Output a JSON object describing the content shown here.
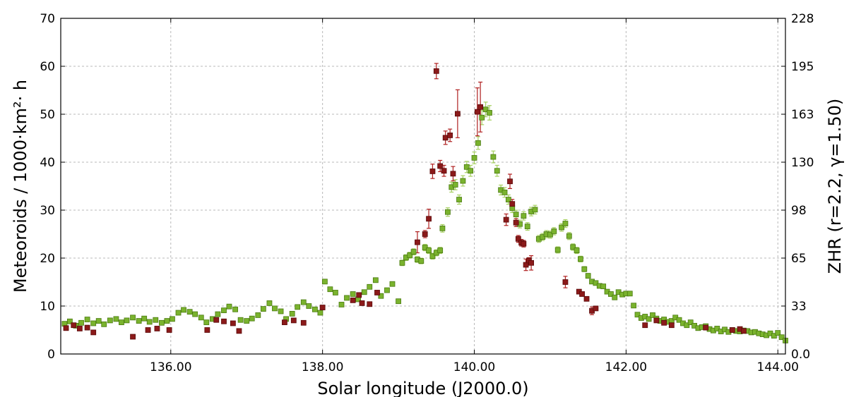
{
  "chart_data": {
    "type": "scatter",
    "xlabel": "Solar longitude (J2000.0)",
    "ylabel": "Meteoroids / 1000·km²· h",
    "ylabel_right": "ZHR (r=2.2, γ=1.50)",
    "xlim": [
      134.55,
      144.1
    ],
    "ylim": [
      0,
      70
    ],
    "grid": true,
    "x_ticks": [
      "136.00",
      "138.00",
      "140.00",
      "142.00",
      "144.00"
    ],
    "x_tick_values": [
      136,
      138,
      140,
      142,
      144
    ],
    "y_ticks": [
      "0",
      "10",
      "20",
      "30",
      "40",
      "50",
      "60",
      "70"
    ],
    "y_tick_values": [
      0,
      10,
      20,
      30,
      40,
      50,
      60,
      70
    ],
    "y2_ticks": [
      "0.0",
      "33",
      "65",
      "98",
      "130",
      "163",
      "195",
      "228"
    ],
    "y2_tick_values": [
      0,
      32.5,
      65,
      97.5,
      130,
      162.5,
      195,
      227.5
    ],
    "y2_max": 227.5,
    "series": [
      {
        "color": "#7ab32e",
        "edge": "#4a7a10",
        "err_color": "#a6d060",
        "points": [
          [
            134.6,
            6.3
          ],
          [
            134.67,
            6.8
          ],
          [
            134.75,
            5.9
          ],
          [
            134.82,
            6.5
          ],
          [
            134.9,
            7.2
          ],
          [
            134.98,
            6.4
          ],
          [
            135.05,
            6.9
          ],
          [
            135.12,
            6.2
          ],
          [
            135.2,
            7.0
          ],
          [
            135.28,
            7.3
          ],
          [
            135.35,
            6.6
          ],
          [
            135.42,
            7.0
          ],
          [
            135.5,
            7.6
          ],
          [
            135.58,
            6.9
          ],
          [
            135.65,
            7.4
          ],
          [
            135.72,
            6.7
          ],
          [
            135.8,
            7.1
          ],
          [
            135.88,
            6.5
          ],
          [
            135.95,
            6.9
          ],
          [
            136.02,
            7.3
          ],
          [
            136.1,
            8.6
          ],
          [
            136.17,
            9.2
          ],
          [
            136.25,
            8.8
          ],
          [
            136.32,
            8.3
          ],
          [
            136.4,
            7.6
          ],
          [
            136.47,
            6.6
          ],
          [
            136.55,
            7.3
          ],
          [
            136.62,
            8.3
          ],
          [
            136.7,
            9.1
          ],
          [
            136.77,
            9.9
          ],
          [
            136.85,
            9.3
          ],
          [
            136.92,
            7.1
          ],
          [
            137.0,
            6.9
          ],
          [
            137.07,
            7.4
          ],
          [
            137.15,
            8.1
          ],
          [
            137.22,
            9.4
          ],
          [
            137.3,
            10.6
          ],
          [
            137.37,
            9.5
          ],
          [
            137.45,
            8.9
          ],
          [
            137.52,
            7.3
          ],
          [
            137.6,
            8.4
          ],
          [
            137.67,
            9.8
          ],
          [
            137.75,
            10.8
          ],
          [
            137.82,
            10.0
          ],
          [
            137.9,
            9.3
          ],
          [
            137.97,
            8.6
          ],
          [
            138.03,
            15.1
          ],
          [
            138.1,
            13.5
          ],
          [
            138.17,
            12.8
          ],
          [
            138.25,
            10.3
          ],
          [
            138.32,
            11.7
          ],
          [
            138.4,
            12.5
          ],
          [
            138.47,
            11.4
          ],
          [
            138.55,
            12.9
          ],
          [
            138.62,
            14.0
          ],
          [
            138.7,
            15.4
          ],
          [
            138.77,
            12.1
          ],
          [
            138.85,
            13.3
          ],
          [
            138.92,
            14.6
          ],
          [
            139.0,
            11.0
          ],
          [
            139.05,
            19.0
          ],
          [
            139.1,
            20.1
          ],
          [
            139.15,
            20.6
          ],
          [
            139.2,
            21.3
          ],
          [
            139.25,
            19.7
          ],
          [
            139.3,
            19.4
          ],
          [
            139.35,
            22.2
          ],
          [
            139.4,
            21.6
          ],
          [
            139.45,
            20.4
          ],
          [
            139.5,
            21.1
          ],
          [
            139.55,
            21.6
          ],
          [
            139.58,
            26.2
          ],
          [
            139.65,
            29.6
          ],
          [
            139.7,
            34.8
          ],
          [
            139.75,
            35.3
          ],
          [
            139.8,
            32.2
          ],
          [
            139.85,
            36.1
          ],
          [
            139.9,
            39.0
          ],
          [
            139.95,
            38.2
          ],
          [
            140.0,
            40.9
          ],
          [
            140.05,
            44.0
          ],
          [
            140.1,
            49.3
          ],
          [
            140.15,
            51.0
          ],
          [
            140.2,
            50.3
          ],
          [
            140.25,
            41.1
          ],
          [
            140.3,
            38.2
          ],
          [
            140.35,
            34.2
          ],
          [
            140.4,
            33.7
          ],
          [
            140.45,
            32.2
          ],
          [
            140.5,
            30.4
          ],
          [
            140.55,
            29.1
          ],
          [
            140.6,
            27.1
          ],
          [
            140.65,
            28.8
          ],
          [
            140.7,
            26.6
          ],
          [
            140.75,
            29.7
          ],
          [
            140.8,
            30.1
          ],
          [
            140.85,
            24.0
          ],
          [
            140.9,
            24.4
          ],
          [
            140.95,
            25.0
          ],
          [
            141.0,
            24.9
          ],
          [
            141.05,
            25.6
          ],
          [
            141.1,
            21.7
          ],
          [
            141.15,
            26.4
          ],
          [
            141.2,
            27.2
          ],
          [
            141.25,
            24.6
          ],
          [
            141.3,
            22.3
          ],
          [
            141.35,
            21.6
          ],
          [
            141.4,
            19.8
          ],
          [
            141.45,
            17.7
          ],
          [
            141.5,
            16.3
          ],
          [
            141.55,
            15.1
          ],
          [
            141.6,
            14.8
          ],
          [
            141.65,
            14.2
          ],
          [
            141.7,
            14.1
          ],
          [
            141.75,
            13.0
          ],
          [
            141.8,
            12.5
          ],
          [
            141.85,
            11.8
          ],
          [
            141.9,
            12.9
          ],
          [
            141.95,
            12.4
          ],
          [
            142.0,
            12.6
          ],
          [
            142.05,
            12.6
          ],
          [
            142.1,
            10.1
          ],
          [
            142.15,
            8.2
          ],
          [
            142.2,
            7.5
          ],
          [
            142.25,
            7.8
          ],
          [
            142.3,
            7.3
          ],
          [
            142.35,
            8.1
          ],
          [
            142.4,
            7.4
          ],
          [
            142.45,
            6.9
          ],
          [
            142.5,
            7.2
          ],
          [
            142.55,
            6.7
          ],
          [
            142.6,
            6.9
          ],
          [
            142.65,
            7.6
          ],
          [
            142.7,
            7.1
          ],
          [
            142.75,
            6.4
          ],
          [
            142.8,
            6.0
          ],
          [
            142.85,
            6.6
          ],
          [
            142.9,
            5.9
          ],
          [
            142.95,
            5.4
          ],
          [
            143.0,
            5.6
          ],
          [
            143.05,
            5.8
          ],
          [
            143.1,
            5.2
          ],
          [
            143.15,
            4.9
          ],
          [
            143.2,
            5.3
          ],
          [
            143.25,
            4.7
          ],
          [
            143.3,
            5.1
          ],
          [
            143.35,
            4.6
          ],
          [
            143.4,
            5.0
          ],
          [
            143.45,
            4.8
          ],
          [
            143.5,
            4.7
          ],
          [
            143.55,
            4.9
          ],
          [
            143.6,
            4.8
          ],
          [
            143.65,
            4.5
          ],
          [
            143.7,
            4.6
          ],
          [
            143.75,
            4.3
          ],
          [
            143.8,
            4.1
          ],
          [
            143.85,
            3.9
          ],
          [
            143.9,
            4.3
          ],
          [
            143.95,
            3.8
          ],
          [
            144.0,
            4.4
          ],
          [
            144.05,
            3.5
          ],
          [
            144.1,
            2.8
          ]
        ]
      },
      {
        "color": "#8b1a1a",
        "edge": "#5a0a0a",
        "err_color": "#b02020",
        "points": [
          [
            134.62,
            5.4
          ],
          [
            134.72,
            6.0
          ],
          [
            134.8,
            5.3
          ],
          [
            134.9,
            5.5
          ],
          [
            134.98,
            4.5
          ],
          [
            135.5,
            3.6
          ],
          [
            135.7,
            5.0
          ],
          [
            135.82,
            5.3
          ],
          [
            135.98,
            5.0
          ],
          [
            136.48,
            5.0
          ],
          [
            136.6,
            7.1
          ],
          [
            136.7,
            6.8
          ],
          [
            136.82,
            6.4
          ],
          [
            136.9,
            4.8
          ],
          [
            137.5,
            6.6
          ],
          [
            137.62,
            7.0
          ],
          [
            137.75,
            6.5
          ],
          [
            138.0,
            9.7
          ],
          [
            138.4,
            11.2
          ],
          [
            138.48,
            12.3
          ],
          [
            138.52,
            10.6
          ],
          [
            138.62,
            10.4
          ],
          [
            138.72,
            12.8
          ],
          [
            139.25,
            23.3
          ],
          [
            139.35,
            25.0
          ],
          [
            139.4,
            28.2
          ],
          [
            139.45,
            38.1
          ],
          [
            139.5,
            59.0
          ],
          [
            139.55,
            39.2
          ],
          [
            139.6,
            38.2
          ],
          [
            139.62,
            45.1
          ],
          [
            139.68,
            45.6
          ],
          [
            139.72,
            37.6
          ],
          [
            139.78,
            50.1
          ],
          [
            140.04,
            50.5
          ],
          [
            140.08,
            51.5
          ],
          [
            140.42,
            28.0
          ],
          [
            140.47,
            36.0
          ],
          [
            140.5,
            31.3
          ],
          [
            140.55,
            27.4
          ],
          [
            140.58,
            24.0
          ],
          [
            140.62,
            23.2
          ],
          [
            140.65,
            23.0
          ],
          [
            140.68,
            18.6
          ],
          [
            140.72,
            19.5
          ],
          [
            140.75,
            19.0
          ],
          [
            141.2,
            15.0
          ],
          [
            141.38,
            13.0
          ],
          [
            141.42,
            12.5
          ],
          [
            141.48,
            11.5
          ],
          [
            141.55,
            9.0
          ],
          [
            141.6,
            9.5
          ],
          [
            142.25,
            6.0
          ],
          [
            142.4,
            7.0
          ],
          [
            142.5,
            6.5
          ],
          [
            142.6,
            6.0
          ],
          [
            143.05,
            5.5
          ],
          [
            143.4,
            5.0
          ],
          [
            143.5,
            5.2
          ],
          [
            143.55,
            4.8
          ]
        ],
        "error_bars": [
          [
            139.25,
            2.2
          ],
          [
            139.4,
            2.0
          ],
          [
            139.45,
            1.5
          ],
          [
            139.5,
            1.6
          ],
          [
            139.62,
            1.4
          ],
          [
            139.68,
            1.3
          ],
          [
            139.72,
            1.5
          ],
          [
            139.78,
            5.0
          ],
          [
            140.04,
            5.0
          ],
          [
            140.08,
            5.2
          ],
          [
            140.42,
            1.2
          ],
          [
            140.47,
            1.5
          ],
          [
            140.68,
            1.2
          ],
          [
            140.75,
            1.5
          ],
          [
            141.2,
            1.2
          ],
          [
            141.55,
            0.8
          ]
        ]
      }
    ]
  }
}
